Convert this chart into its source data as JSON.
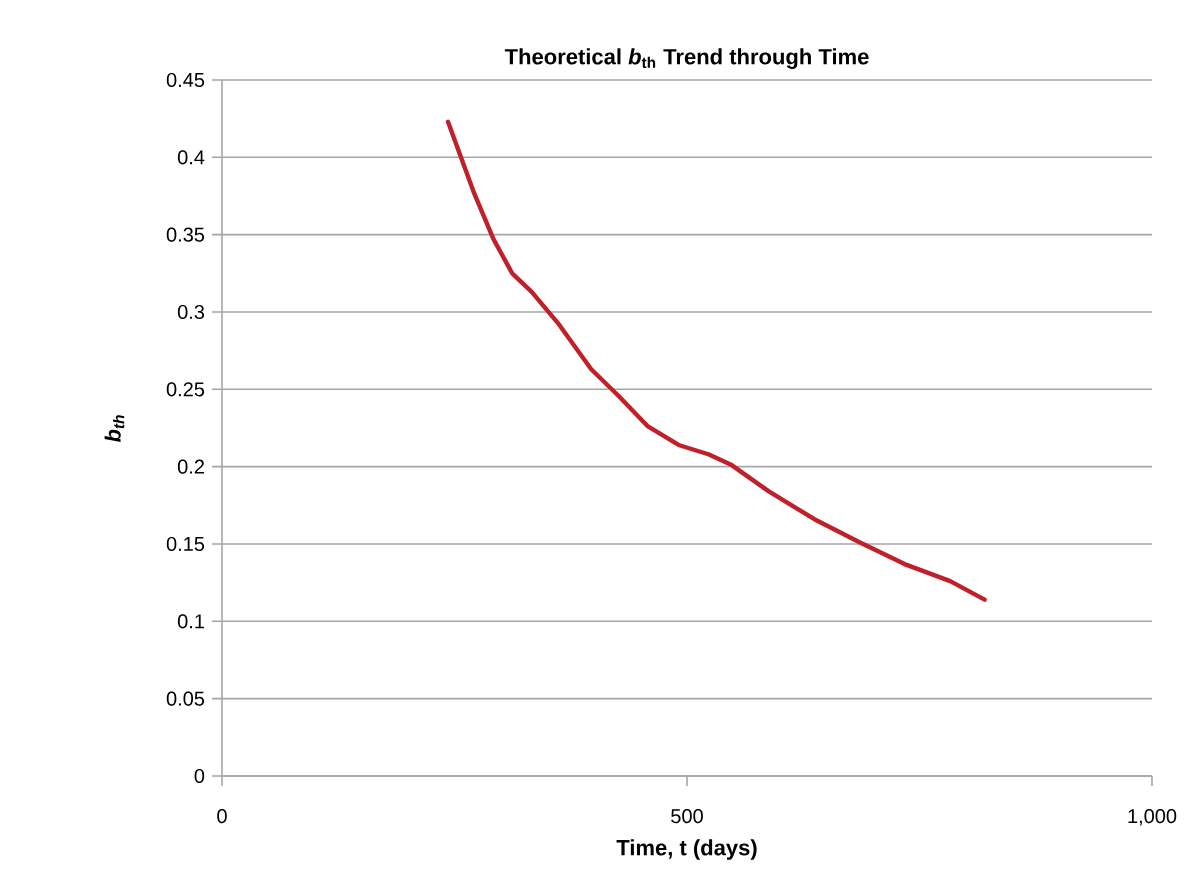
{
  "chart_data": {
    "type": "line",
    "title": "Theoretical *b*$_{th}$ Trend through Time",
    "xlabel": "Time, t (days)",
    "ylabel": "b$_{th}$",
    "x": [
      243,
      271,
      292,
      312,
      333,
      361,
      397,
      426,
      458,
      491,
      523,
      548,
      588,
      637,
      686,
      734,
      783,
      820
    ],
    "series": [
      {
        "color": "#c0202a",
        "values": [
          0.423,
          0.377,
          0.347,
          0.325,
          0.313,
          0.293,
          0.263,
          0.246,
          0.226,
          0.214,
          0.208,
          0.201,
          0.184,
          0.166,
          0.151,
          0.137,
          0.126,
          0.114
        ]
      }
    ],
    "xlim": [
      0,
      1000
    ],
    "xticks": [
      0,
      500,
      {
        "value": 1000,
        "label": "1,000"
      }
    ],
    "ylim": [
      0,
      0.45
    ],
    "yticks": [
      0,
      0.05,
      0.1,
      0.15,
      0.2,
      0.25,
      0.3,
      0.35,
      0.4,
      0.45
    ],
    "grid": "y",
    "marker": "none",
    "line_style": "solid"
  }
}
